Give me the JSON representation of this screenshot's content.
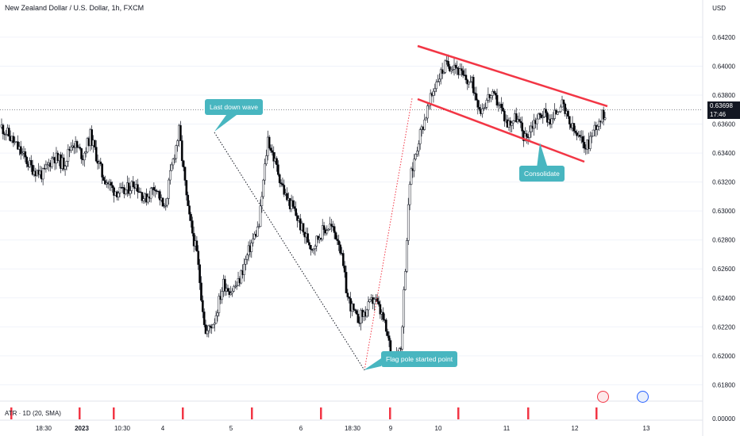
{
  "header": {
    "title": "New Zealand Dollar / U.S. Dollar, 1h, FXCM",
    "currency": "USD"
  },
  "last_price": {
    "value": "0.63698",
    "countdown": "17:46"
  },
  "indicator": {
    "label": "ATR · 1D (20, SMA)",
    "zero_label": "0.00000"
  },
  "annotations": {
    "last_down_wave": "Last down wave",
    "consolidate": "Consolidate",
    "flag_pole": "Flag pole started point"
  },
  "colors": {
    "up_candle": "#ffffff",
    "down_candle": "#000000",
    "candle_border": "#131722",
    "channel_line": "#f23645",
    "pole_line": "#f23645",
    "wave_line": "#131722",
    "callout": "#48b6c0",
    "atr_bar": "#f23645"
  },
  "chart_data": {
    "type": "candlestick",
    "title": "New Zealand Dollar / U.S. Dollar, 1h, FXCM",
    "y_axis": {
      "ticks": [
        "0.64200",
        "0.64000",
        "0.63800",
        "0.63600",
        "0.63400",
        "0.63200",
        "0.63000",
        "0.62800",
        "0.62600",
        "0.62400",
        "0.62200",
        "0.62000",
        "0.61800"
      ],
      "range": [
        0.6172,
        0.6432
      ]
    },
    "x_axis": {
      "ticks": [
        "18:30",
        "2023",
        "10:30",
        "4",
        "5",
        "6",
        "18:30",
        "9",
        "10",
        "11",
        "12",
        "13"
      ]
    },
    "close_path": [
      [
        0,
        0.6358
      ],
      [
        5,
        0.6352
      ],
      [
        12,
        0.6342
      ],
      [
        20,
        0.633
      ],
      [
        28,
        0.6325
      ],
      [
        35,
        0.6338
      ],
      [
        42,
        0.6332
      ],
      [
        48,
        0.6348
      ],
      [
        55,
        0.6338
      ],
      [
        60,
        0.6352
      ],
      [
        68,
        0.6325
      ],
      [
        75,
        0.6315
      ],
      [
        82,
        0.6312
      ],
      [
        90,
        0.632
      ],
      [
        97,
        0.6308
      ],
      [
        104,
        0.6318
      ],
      [
        110,
        0.63
      ],
      [
        115,
        0.633
      ],
      [
        120,
        0.6355
      ],
      [
        126,
        0.63
      ],
      [
        132,
        0.627
      ],
      [
        138,
        0.6215
      ],
      [
        144,
        0.6225
      ],
      [
        150,
        0.625
      ],
      [
        155,
        0.6245
      ],
      [
        160,
        0.625
      ],
      [
        168,
        0.6275
      ],
      [
        174,
        0.629
      ],
      [
        180,
        0.635
      ],
      [
        186,
        0.633
      ],
      [
        192,
        0.631
      ],
      [
        198,
        0.63
      ],
      [
        204,
        0.6285
      ],
      [
        210,
        0.6275
      ],
      [
        216,
        0.6285
      ],
      [
        222,
        0.629
      ],
      [
        228,
        0.628
      ],
      [
        234,
        0.624
      ],
      [
        240,
        0.6225
      ],
      [
        246,
        0.623
      ],
      [
        252,
        0.624
      ],
      [
        258,
        0.6225
      ],
      [
        264,
        0.62
      ],
      [
        270,
        0.6205
      ],
      [
        276,
        0.632
      ],
      [
        282,
        0.635
      ],
      [
        288,
        0.637
      ],
      [
        294,
        0.639
      ],
      [
        300,
        0.64
      ],
      [
        306,
        0.6402
      ],
      [
        312,
        0.6392
      ],
      [
        318,
        0.6388
      ],
      [
        324,
        0.637
      ],
      [
        330,
        0.638
      ],
      [
        336,
        0.6375
      ],
      [
        342,
        0.636
      ],
      [
        348,
        0.6365
      ],
      [
        354,
        0.635
      ],
      [
        360,
        0.6362
      ],
      [
        366,
        0.6368
      ],
      [
        372,
        0.6362
      ],
      [
        378,
        0.6375
      ],
      [
        384,
        0.636
      ],
      [
        390,
        0.635
      ],
      [
        396,
        0.6345
      ],
      [
        402,
        0.636
      ],
      [
        408,
        0.6368
      ]
    ],
    "annotations": [
      "Last down wave",
      "Consolidate",
      "Flag pole started point"
    ]
  }
}
